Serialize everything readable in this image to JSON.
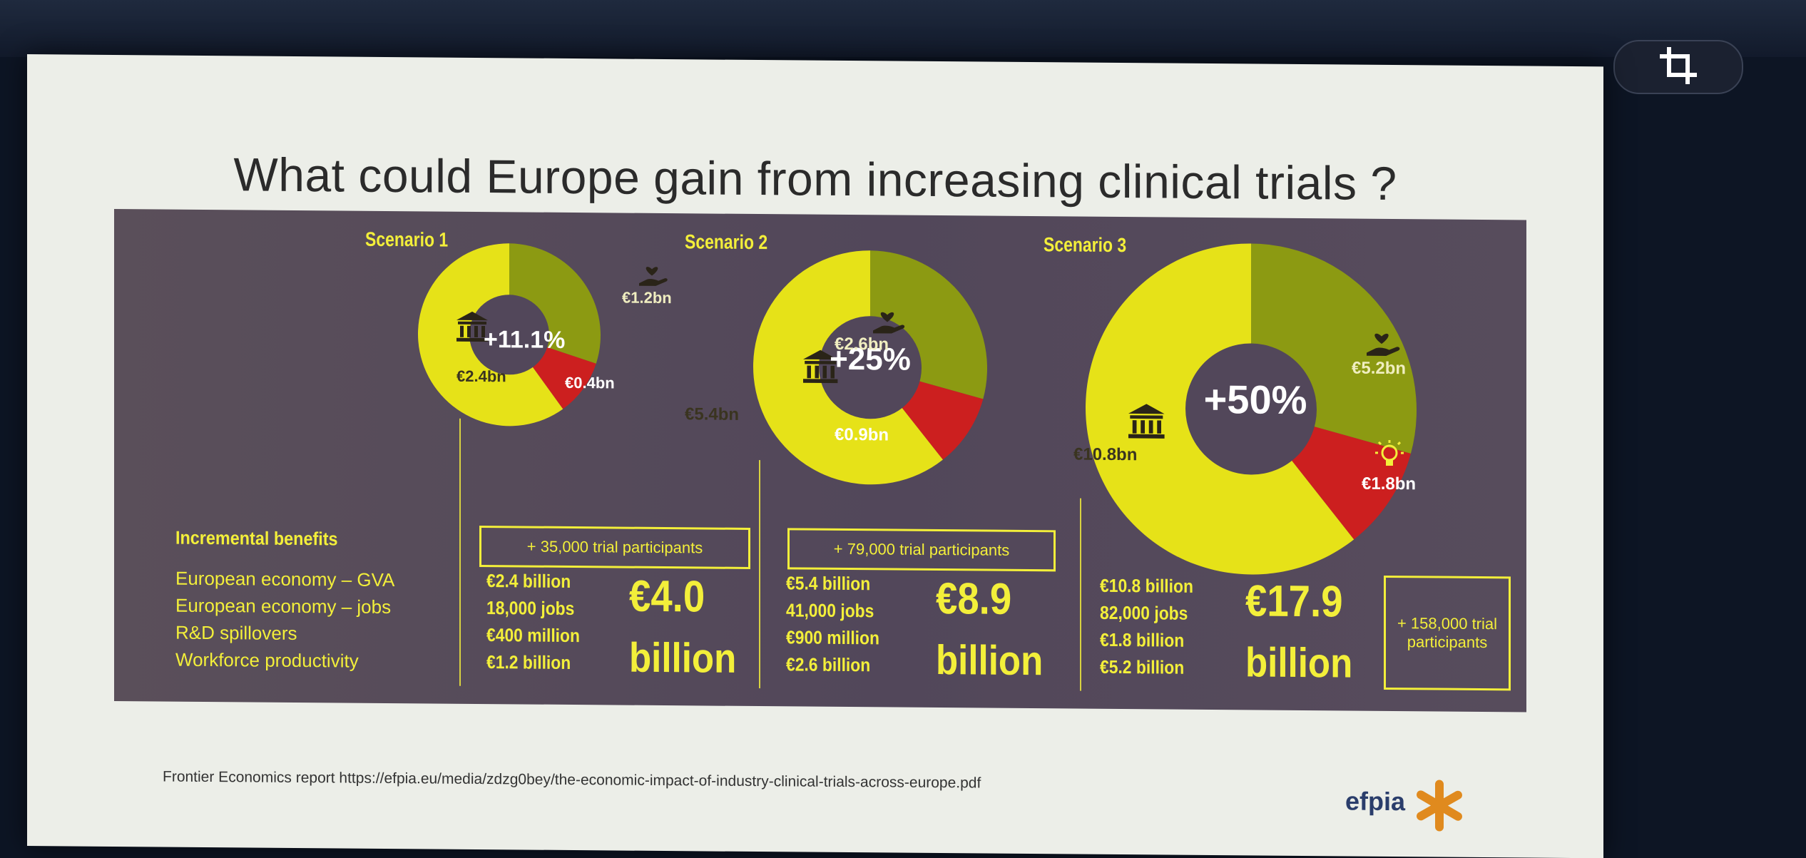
{
  "slide": {
    "title": "What could Europe gain from increasing clinical trials ?",
    "source": "Frontier Economics report https://efpia.eu/media/zdzg0bey/the-economic-impact-of-industry-clinical-trials-across-europe.pdf",
    "logo_text": "efpia"
  },
  "colors": {
    "gva": "#e6e218",
    "workforce": "#8c9a12",
    "rnd": "#cc1f1f",
    "panel_text": "#f3ef3a",
    "hole": "#52475a"
  },
  "benefits": {
    "heading": "Incremental benefits",
    "rows": [
      "European economy – GVA",
      "European economy – jobs",
      "R&D spillovers",
      "Workforce productivity"
    ]
  },
  "chart_data": [
    {
      "type": "pie",
      "title": "Scenario 1",
      "center_label": "+11.1%",
      "slices": [
        {
          "name": "GVA",
          "label": "€2.4bn",
          "value": 2.4,
          "icon": "bank-icon"
        },
        {
          "name": "Workforce productivity",
          "label": "€1.2bn",
          "value": 1.2,
          "icon": "heart-hand-icon"
        },
        {
          "name": "R&D spillovers",
          "label": "€0.4bn",
          "value": 0.4,
          "icon": ""
        }
      ],
      "participants": "+ 35,000 trial participants",
      "values": [
        "€2.4 billion",
        "18,000 jobs",
        "€400 million",
        "€1.2 billion"
      ],
      "total_num": "€4.0",
      "total_unit": "billion"
    },
    {
      "type": "pie",
      "title": "Scenario 2",
      "center_label": "+25%",
      "slices": [
        {
          "name": "GVA",
          "label": "€5.4bn",
          "value": 5.4,
          "icon": "bank-icon"
        },
        {
          "name": "Workforce productivity",
          "label": "€2.6bn",
          "value": 2.6,
          "icon": "heart-hand-icon"
        },
        {
          "name": "R&D spillovers",
          "label": "€0.9bn",
          "value": 0.9,
          "icon": ""
        }
      ],
      "participants": "+ 79,000 trial participants",
      "values": [
        "€5.4 billion",
        "41,000 jobs",
        "€900 million",
        "€2.6 billion"
      ],
      "total_num": "€8.9",
      "total_unit": "billion"
    },
    {
      "type": "pie",
      "title": "Scenario 3",
      "center_label": "+50%",
      "slices": [
        {
          "name": "GVA",
          "label": "€10.8bn",
          "value": 10.8,
          "icon": "bank-icon"
        },
        {
          "name": "Workforce productivity",
          "label": "€5.2bn",
          "value": 5.2,
          "icon": "heart-hand-icon"
        },
        {
          "name": "R&D spillovers",
          "label": "€1.8bn",
          "value": 1.8,
          "icon": "lightbulb-icon"
        }
      ],
      "participants": "+ 158,000 trial participants",
      "values": [
        "€10.8 billion",
        "82,000 jobs",
        "€1.8 billion",
        "€5.2 billion"
      ],
      "total_num": "€17.9",
      "total_unit": "billion"
    }
  ]
}
